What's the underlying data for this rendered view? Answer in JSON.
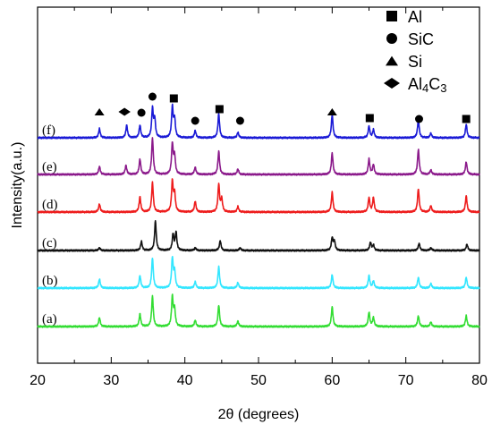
{
  "chart_data": {
    "type": "line",
    "title": "",
    "xlabel": "2θ (degrees)",
    "ylabel": "Intensity(a.u.)",
    "xlim": [
      20,
      80
    ],
    "x_ticks": [
      "20",
      "30",
      "40",
      "50",
      "60",
      "70",
      "80"
    ],
    "grid": false,
    "legend_position": "top-right",
    "legend": [
      {
        "marker": "square",
        "label": "Al"
      },
      {
        "marker": "circle",
        "label": "SiC"
      },
      {
        "marker": "triangle",
        "label": "Si"
      },
      {
        "marker": "diamond",
        "label": "Al4C3"
      }
    ],
    "phase_markers": [
      {
        "marker": "triangle",
        "x": 28.4
      },
      {
        "marker": "diamond",
        "x": 31.8
      },
      {
        "marker": "circle",
        "x": 34.1
      },
      {
        "marker": "circle",
        "x": 35.6
      },
      {
        "marker": "square",
        "x": 38.5
      },
      {
        "marker": "circle",
        "x": 41.4
      },
      {
        "marker": "square",
        "x": 44.7
      },
      {
        "marker": "circle",
        "x": 47.5
      },
      {
        "marker": "triangle",
        "x": 60.0
      },
      {
        "marker": "square",
        "x": 65.1
      },
      {
        "marker": "circle",
        "x": 71.8
      },
      {
        "marker": "square",
        "x": 78.2
      }
    ],
    "series": [
      {
        "label": "(a)",
        "color": "#33dd33",
        "peaks": [
          [
            28.4,
            0.1
          ],
          [
            33.9,
            0.14
          ],
          [
            35.6,
            0.34
          ],
          [
            38.3,
            0.33
          ],
          [
            38.6,
            0.18
          ],
          [
            41.4,
            0.07
          ],
          [
            44.6,
            0.24
          ],
          [
            47.2,
            0.06
          ],
          [
            60.0,
            0.22
          ],
          [
            65.0,
            0.16
          ],
          [
            65.6,
            0.1
          ],
          [
            71.7,
            0.12
          ],
          [
            73.4,
            0.05
          ],
          [
            78.2,
            0.12
          ]
        ]
      },
      {
        "label": "(b)",
        "color": "#33e6ff",
        "peaks": [
          [
            28.4,
            0.1
          ],
          [
            33.9,
            0.14
          ],
          [
            35.6,
            0.34
          ],
          [
            38.3,
            0.33
          ],
          [
            38.6,
            0.18
          ],
          [
            41.4,
            0.07
          ],
          [
            44.6,
            0.24
          ],
          [
            47.2,
            0.06
          ],
          [
            60.0,
            0.15
          ],
          [
            65.0,
            0.14
          ],
          [
            65.6,
            0.08
          ],
          [
            71.7,
            0.12
          ],
          [
            73.4,
            0.05
          ],
          [
            78.2,
            0.12
          ]
        ]
      },
      {
        "label": "(c)",
        "color": "#111111",
        "peaks": [
          [
            28.4,
            0.03
          ],
          [
            34.1,
            0.1
          ],
          [
            36.0,
            0.33
          ],
          [
            38.4,
            0.18
          ],
          [
            38.8,
            0.2
          ],
          [
            41.4,
            0.03
          ],
          [
            44.8,
            0.11
          ],
          [
            47.5,
            0.03
          ],
          [
            60.0,
            0.14
          ],
          [
            60.3,
            0.1
          ],
          [
            65.2,
            0.09
          ],
          [
            65.6,
            0.06
          ],
          [
            71.8,
            0.08
          ],
          [
            73.4,
            0.03
          ],
          [
            78.3,
            0.07
          ]
        ]
      },
      {
        "label": "(d)",
        "color": "#ee1c1c",
        "peaks": [
          [
            28.4,
            0.09
          ],
          [
            33.9,
            0.17
          ],
          [
            35.6,
            0.33
          ],
          [
            38.3,
            0.34
          ],
          [
            38.6,
            0.2
          ],
          [
            41.4,
            0.12
          ],
          [
            44.6,
            0.31
          ],
          [
            45.0,
            0.14
          ],
          [
            47.2,
            0.06
          ],
          [
            60.0,
            0.22
          ],
          [
            65.0,
            0.16
          ],
          [
            65.6,
            0.16
          ],
          [
            71.7,
            0.26
          ],
          [
            73.4,
            0.07
          ],
          [
            78.2,
            0.18
          ]
        ]
      },
      {
        "label": "(e)",
        "color": "#8b1a8b",
        "peaks": [
          [
            28.4,
            0.09
          ],
          [
            32.0,
            0.1
          ],
          [
            33.9,
            0.17
          ],
          [
            35.6,
            0.41
          ],
          [
            38.3,
            0.34
          ],
          [
            38.6,
            0.2
          ],
          [
            41.4,
            0.08
          ],
          [
            44.6,
            0.26
          ],
          [
            47.2,
            0.06
          ],
          [
            60.0,
            0.24
          ],
          [
            65.0,
            0.17
          ],
          [
            65.6,
            0.11
          ],
          [
            71.7,
            0.28
          ],
          [
            73.4,
            0.05
          ],
          [
            78.2,
            0.14
          ]
        ]
      },
      {
        "label": "(f)",
        "color": "#1a1ad6",
        "peaks": [
          [
            28.4,
            0.1
          ],
          [
            32.1,
            0.14
          ],
          [
            33.9,
            0.14
          ],
          [
            35.6,
            0.32
          ],
          [
            35.9,
            0.2
          ],
          [
            38.3,
            0.34
          ],
          [
            38.6,
            0.2
          ],
          [
            41.4,
            0.08
          ],
          [
            44.6,
            0.27
          ],
          [
            47.2,
            0.06
          ],
          [
            60.0,
            0.26
          ],
          [
            65.0,
            0.13
          ],
          [
            65.6,
            0.09
          ],
          [
            71.7,
            0.21
          ],
          [
            73.4,
            0.05
          ],
          [
            78.2,
            0.15
          ]
        ]
      }
    ]
  }
}
